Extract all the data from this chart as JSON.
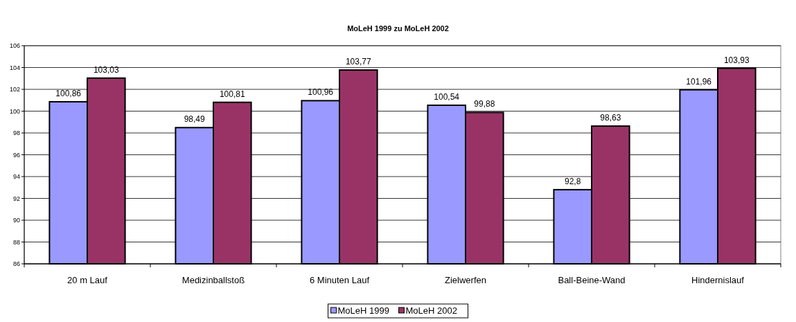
{
  "chart_data": {
    "type": "bar",
    "title": "MoLeH 1999 zu MoLeH 2002",
    "categories": [
      "20 m Lauf",
      "Medizinballstoß",
      "6 Minuten Lauf",
      "Zielwerfen",
      "Ball-Beine-Wand",
      "Hindernislauf"
    ],
    "series": [
      {
        "name": "MoLeH 1999",
        "color": "#9999ff",
        "values": [
          100.86,
          98.49,
          100.96,
          100.54,
          92.8,
          101.96
        ],
        "value_labels": [
          "100,86",
          "98,49",
          "100,96",
          "100,54",
          "92,8",
          "101,96"
        ]
      },
      {
        "name": "MoLeH 2002",
        "color": "#993366",
        "values": [
          103.03,
          100.81,
          103.77,
          99.88,
          98.63,
          103.93
        ],
        "value_labels": [
          "103,03",
          "100,81",
          "103,77",
          "99,88",
          "98,63",
          "103,93"
        ]
      }
    ],
    "ylim": [
      86,
      106
    ],
    "yticks": [
      86,
      88,
      90,
      92,
      94,
      96,
      98,
      100,
      102,
      104,
      106
    ],
    "grid": "y",
    "legend": "bottom"
  }
}
